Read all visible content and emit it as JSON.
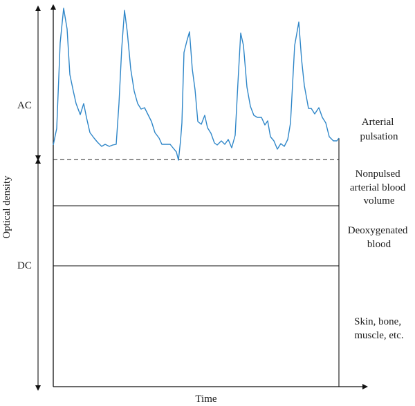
{
  "diagram": {
    "axis_labels": {
      "y": "Optical density",
      "x": "Time"
    },
    "brackets": {
      "ac": "AC",
      "dc": "DC"
    },
    "layers": [
      {
        "id": "arterial-pulsation",
        "lines": [
          "Arterial",
          "pulsation"
        ]
      },
      {
        "id": "nonpulsed-arterial-blood",
        "lines": [
          "Nonpulsed",
          "arterial blood",
          "volume"
        ]
      },
      {
        "id": "deoxygenated-blood",
        "lines": [
          "Deoxygenated",
          "blood"
        ]
      },
      {
        "id": "skin-bone-muscle",
        "lines": [
          "Skin, bone,",
          "muscle, etc."
        ]
      }
    ],
    "colors": {
      "pulse_line": "#2e86c8",
      "axes": "#111111"
    }
  }
}
